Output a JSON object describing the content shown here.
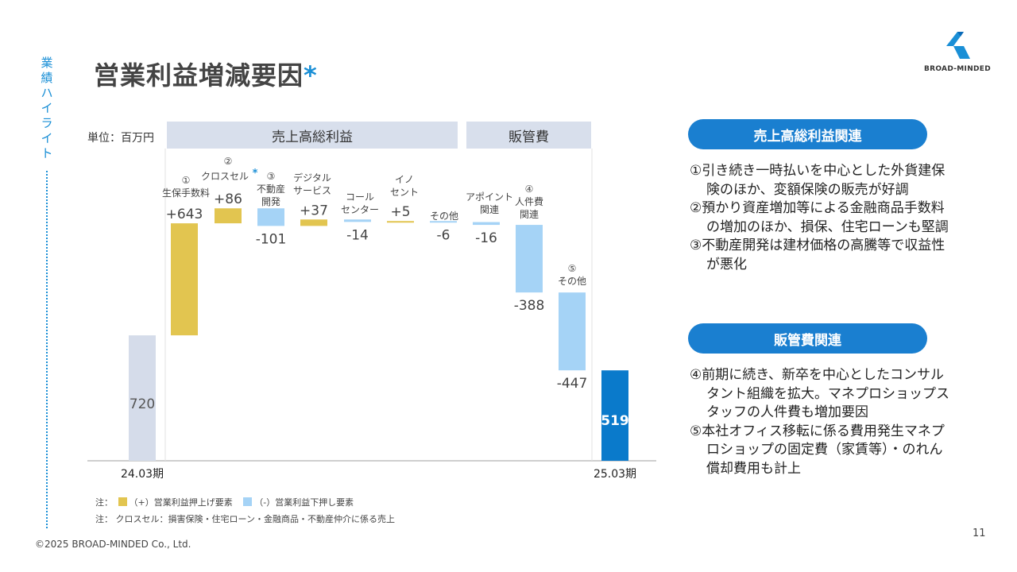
{
  "sidebar": {
    "label": "業績ハイライト"
  },
  "title": {
    "main": "営業利益増減要因",
    "star": "*"
  },
  "logo": {
    "text": "BROAD-MINDED"
  },
  "chart_labels": {
    "unit": "単位：百万円",
    "group_gross_profit": "売上高総利益",
    "group_sga": "販管費"
  },
  "chart_data": {
    "type": "waterfall",
    "unit": "百万円",
    "start": {
      "label": "24.03期",
      "value": 720
    },
    "end": {
      "label": "25.03期",
      "value": 519
    },
    "steps": [
      {
        "num": "①",
        "label": "生保手数料",
        "value": 643,
        "display": "+643",
        "group": "売上高総利益"
      },
      {
        "num": "②",
        "label": "クロスセル",
        "star": "*",
        "value": 86,
        "display": "+86",
        "group": "売上高総利益"
      },
      {
        "num": "③",
        "label": "不動産開発",
        "value": -101,
        "display": "-101",
        "group": "売上高総利益"
      },
      {
        "num": "",
        "label": "デジタルサービス",
        "value": 37,
        "display": "+37",
        "group": "売上高総利益"
      },
      {
        "num": "",
        "label": "コールセンター",
        "value": -14,
        "display": "-14",
        "group": "売上高総利益"
      },
      {
        "num": "",
        "label": "イノセント",
        "value": 5,
        "display": "+5",
        "group": "売上高総利益"
      },
      {
        "num": "",
        "label": "その他",
        "value": -6,
        "display": "-6",
        "group": "売上高総利益"
      },
      {
        "num": "",
        "label": "アポイント関連",
        "value": -16,
        "display": "-16",
        "group": "販管費"
      },
      {
        "num": "④",
        "label": "人件費関連",
        "value": -388,
        "display": "-388",
        "group": "販管費"
      },
      {
        "num": "⑤",
        "label": "その他",
        "value": -447,
        "display": "-447",
        "group": "販管費"
      }
    ],
    "colors": {
      "increase": "#e2c550",
      "decrease": "#a5d3f6",
      "start": "#d5dcea",
      "end": "#0a7acb"
    }
  },
  "notes": {
    "note1_prefix": "注：",
    "note1_plus": "（+）営業利益押上げ要素",
    "note1_minus": "（-）営業利益下押し要素",
    "note2": "注： クロスセル：損害保険・住宅ローン・金融商品・不動産仲介に係る売上"
  },
  "right_panel": {
    "gross_profit_title": "売上高総利益関連",
    "gross_profit_items": [
      "①引き続き一時払いを中心とした外貨建保険のほか、変額保険の販売が好調",
      "②預かり資産増加等による金融商品手数料の増加のほか、損保、住宅ローンも堅調",
      "③不動産開発は建材価格の高騰等で収益性が悪化"
    ],
    "sga_title": "販管費関連",
    "sga_items": [
      "④前期に続き、新卒を中心としたコンサルタント組織を拡大。マネプロショップスタッフの人件費も増加要因",
      "⑤本社オフィス移転に係る費用発生マネプロショップの固定費（家賃等）・のれん償却費用も計上"
    ]
  },
  "footer": {
    "copyright": "©2025 BROAD-MINDED Co., Ltd.",
    "page": "11"
  }
}
